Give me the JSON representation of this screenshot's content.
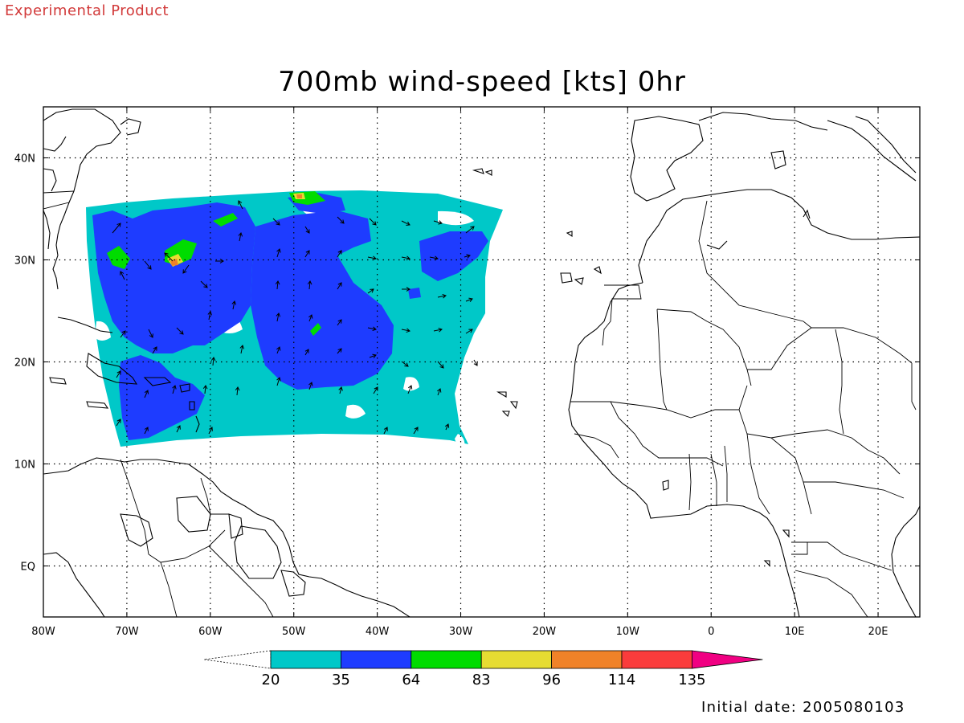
{
  "header": {
    "experimental_label": "Experimental Product"
  },
  "title": "700mb wind-speed [kts] 0hr",
  "map": {
    "extent": {
      "lon": [
        -80,
        25
      ],
      "lat": [
        -5,
        45
      ]
    },
    "gridlines": "dotted",
    "lon_labels": [
      "80W",
      "70W",
      "60W",
      "50W",
      "40W",
      "30W",
      "20W",
      "10W",
      "0",
      "10E",
      "20E"
    ],
    "lat_labels": [
      "40N",
      "30N",
      "20N",
      "10N",
      "EQ"
    ],
    "fill_colors": {
      "20-35": "#00c8c8",
      "35-64": "#1e3cff",
      "64-83": "#00dc00",
      "83-96": "#e6dc32",
      "96-114": "#f08228",
      "114-135": "#fa3c3c",
      "135+": "#f00082"
    }
  },
  "colorbar": {
    "labels": [
      "20",
      "35",
      "64",
      "83",
      "96",
      "114",
      "135"
    ],
    "colors": [
      "#00c8c8",
      "#1e3cff",
      "#00dc00",
      "#e6dc32",
      "#f08228",
      "#fa3c3c",
      "#f00082"
    ]
  },
  "footer": {
    "initial_date": "Initial date: 2005080103"
  }
}
